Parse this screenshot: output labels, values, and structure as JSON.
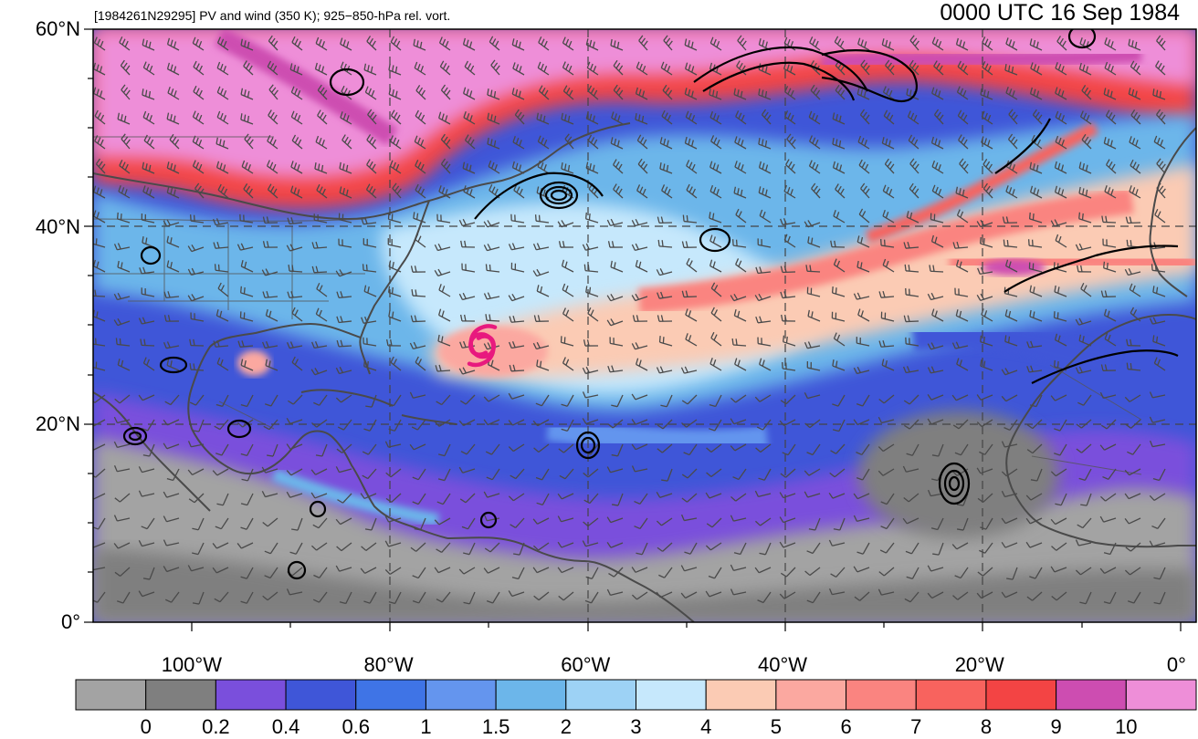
{
  "title": {
    "left": "[1984261N29295] PV and wind (350 K); 925−850-hPa rel. vort.",
    "right": "0000 UTC 16 Sep 1984"
  },
  "map_extent": {
    "lon_min": -110,
    "lon_max": 2,
    "lat_min": 0,
    "lat_max": 60
  },
  "lat_ticks": [
    {
      "value": 60,
      "label": "60°N"
    },
    {
      "value": 40,
      "label": "40°N"
    },
    {
      "value": 20,
      "label": "20°N"
    },
    {
      "value": 0,
      "label": "0°"
    }
  ],
  "lon_ticks": [
    {
      "value": -100,
      "label": "100°W"
    },
    {
      "value": -80,
      "label": "80°W"
    },
    {
      "value": -60,
      "label": "60°W"
    },
    {
      "value": -40,
      "label": "40°W"
    },
    {
      "value": -20,
      "label": "20°W"
    },
    {
      "value": 0,
      "label": "0°"
    }
  ],
  "storm_symbol": {
    "lon": -70.5,
    "lat": 28,
    "color": "#e8197e",
    "icon": "tropical-cyclone-icon"
  },
  "colorbar": {
    "colors": [
      "#a3a3a3",
      "#7f7f7f",
      "#7a4fdc",
      "#3f56d8",
      "#3f74e6",
      "#6495ee",
      "#6cb6ea",
      "#9dd2f5",
      "#c6e8fc",
      "#fbcbb4",
      "#fba8a0",
      "#fa8480",
      "#f8635e",
      "#f34444",
      "#cd4db1",
      "#ee8ed8"
    ],
    "labels": [
      "0",
      "0.2",
      "0.4",
      "0.6",
      "1",
      "1.5",
      "2",
      "3",
      "4",
      "5",
      "6",
      "7",
      "8",
      "9",
      "10"
    ]
  }
}
